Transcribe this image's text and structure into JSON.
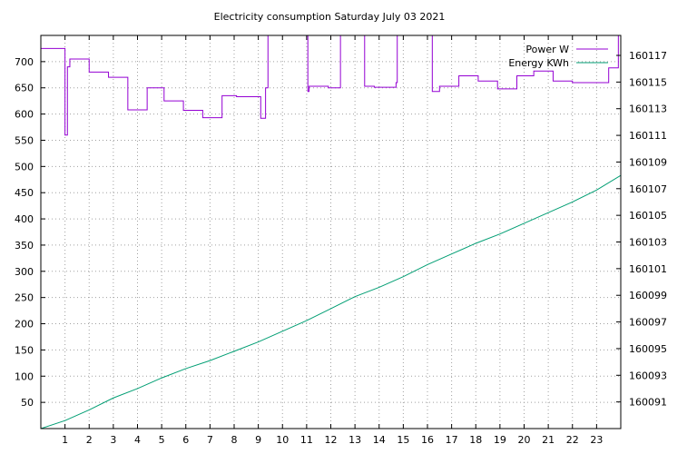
{
  "chart_data": {
    "type": "line",
    "title": "Electricity consumption Saturday July 03 2021",
    "xlim": [
      0,
      24
    ],
    "x_ticks": [
      1,
      2,
      3,
      4,
      5,
      6,
      7,
      8,
      9,
      10,
      11,
      12,
      13,
      14,
      15,
      16,
      17,
      18,
      19,
      20,
      21,
      22,
      23
    ],
    "y_left": {
      "ylim": [
        0,
        750
      ],
      "ticks": [
        50,
        100,
        150,
        200,
        250,
        300,
        350,
        400,
        450,
        500,
        550,
        600,
        650,
        700
      ]
    },
    "y_right": {
      "ylim": [
        160089,
        160118.5
      ],
      "ticks": [
        160091,
        160093,
        160095,
        160097,
        160099,
        160101,
        160103,
        160105,
        160107,
        160109,
        160111,
        160113,
        160115,
        160117
      ]
    },
    "grid": true,
    "legend_position": "top-right",
    "colors": {
      "power": "#9400d3",
      "energy": "#009e73",
      "axis": "#000000",
      "grid": "#a0a0a0"
    },
    "series": [
      {
        "name": "Power W",
        "axis": "left",
        "step": true,
        "points": [
          [
            0.0,
            725
          ],
          [
            0.05,
            725
          ],
          [
            0.1,
            725
          ],
          [
            1.0,
            560
          ],
          [
            1.1,
            690
          ],
          [
            1.2,
            705
          ],
          [
            1.9,
            705
          ],
          [
            2.0,
            680
          ],
          [
            2.7,
            680
          ],
          [
            2.8,
            670
          ],
          [
            3.5,
            670
          ],
          [
            3.6,
            608
          ],
          [
            4.3,
            608
          ],
          [
            4.4,
            650
          ],
          [
            5.0,
            650
          ],
          [
            5.1,
            625
          ],
          [
            5.8,
            625
          ],
          [
            5.9,
            607
          ],
          [
            6.6,
            607
          ],
          [
            6.7,
            593
          ],
          [
            7.4,
            593
          ],
          [
            7.5,
            635
          ],
          [
            8.1,
            633
          ],
          [
            8.9,
            633
          ],
          [
            9.1,
            592
          ],
          [
            9.3,
            650
          ],
          [
            9.4,
            750
          ],
          [
            9.5,
            750
          ],
          [
            11.0,
            750
          ],
          [
            11.05,
            643
          ],
          [
            11.1,
            653
          ],
          [
            11.8,
            653
          ],
          [
            11.9,
            650
          ],
          [
            12.3,
            650
          ],
          [
            12.4,
            750
          ],
          [
            13.3,
            750
          ],
          [
            13.4,
            653
          ],
          [
            13.8,
            651
          ],
          [
            14.6,
            651
          ],
          [
            14.7,
            660
          ],
          [
            14.75,
            750
          ],
          [
            16.15,
            750
          ],
          [
            16.2,
            643
          ],
          [
            16.5,
            653
          ],
          [
            17.2,
            653
          ],
          [
            17.3,
            673
          ],
          [
            18.0,
            673
          ],
          [
            18.1,
            663
          ],
          [
            18.8,
            663
          ],
          [
            18.9,
            648
          ],
          [
            19.6,
            648
          ],
          [
            19.7,
            673
          ],
          [
            20.3,
            673
          ],
          [
            20.4,
            682
          ],
          [
            21.1,
            682
          ],
          [
            21.2,
            663
          ],
          [
            21.9,
            663
          ],
          [
            22.0,
            660
          ],
          [
            23.4,
            660
          ],
          [
            23.5,
            688
          ],
          [
            23.8,
            688
          ],
          [
            23.9,
            750
          ],
          [
            24.0,
            750
          ]
        ]
      },
      {
        "name": "Energy KWh",
        "axis": "right",
        "step": false,
        "points": [
          [
            0.0,
            160089.0
          ],
          [
            1.0,
            160089.6
          ],
          [
            2.0,
            160090.4
          ],
          [
            3.0,
            160091.3
          ],
          [
            4.0,
            160092.0
          ],
          [
            5.0,
            160092.8
          ],
          [
            6.0,
            160093.5
          ],
          [
            7.0,
            160094.1
          ],
          [
            8.0,
            160094.8
          ],
          [
            9.0,
            160095.5
          ],
          [
            10.0,
            160096.3
          ],
          [
            11.0,
            160097.1
          ],
          [
            12.0,
            160098.0
          ],
          [
            13.0,
            160098.9
          ],
          [
            14.0,
            160099.6
          ],
          [
            15.0,
            160100.4
          ],
          [
            16.0,
            160101.3
          ],
          [
            17.0,
            160102.1
          ],
          [
            18.0,
            160102.9
          ],
          [
            19.0,
            160103.6
          ],
          [
            20.0,
            160104.4
          ],
          [
            21.0,
            160105.2
          ],
          [
            22.0,
            160106.0
          ],
          [
            23.0,
            160106.9
          ],
          [
            24.0,
            160108.0
          ]
        ]
      }
    ]
  }
}
